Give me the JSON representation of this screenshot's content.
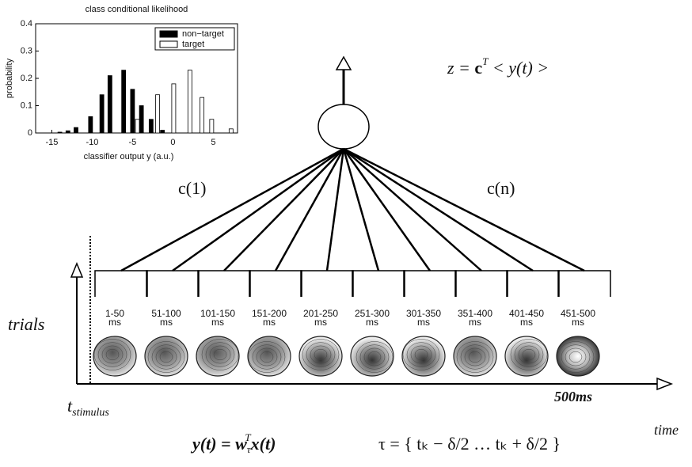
{
  "chart_data": {
    "type": "bar",
    "title": "class conditional likelihood",
    "x_label": "classifier output y (a.u.)",
    "y_label": "probability",
    "xlim": [
      -17,
      8
    ],
    "xticks": [
      -15,
      -10,
      -5,
      0,
      5
    ],
    "ylim": [
      0,
      0.4
    ],
    "yticks": [
      0,
      0.1,
      0.2,
      0.3,
      0.4
    ],
    "legend": "upper right",
    "series": [
      {
        "name": "non−target",
        "color": "#000000",
        "x": [
          -14,
          -13,
          -12,
          -10.2,
          -8.8,
          -7.8,
          -6.1,
          -5.0,
          -3.9,
          -2.7,
          -1.3
        ],
        "values": [
          0.003,
          0.008,
          0.02,
          0.06,
          0.14,
          0.21,
          0.23,
          0.16,
          0.1,
          0.05,
          0.01
        ]
      },
      {
        "name": "target",
        "color": "#ffffff",
        "x": [
          -4.4,
          -1.9,
          0.1,
          2.1,
          3.6,
          4.8,
          7.2
        ],
        "values": [
          0.05,
          0.14,
          0.18,
          0.23,
          0.13,
          0.05,
          0.015
        ]
      }
    ]
  },
  "diagram": {
    "output_equation": {
      "lhs": "z = ",
      "c": "c",
      "sup": "T",
      "rhs": " < y(t) >"
    },
    "weight_first": "c(1)",
    "weight_last": "c(n)",
    "windows": [
      {
        "range": "1-50",
        "unit": "ms"
      },
      {
        "range": "51-100",
        "unit": "ms"
      },
      {
        "range": "101-150",
        "unit": "ms"
      },
      {
        "range": "151-200",
        "unit": "ms"
      },
      {
        "range": "201-250",
        "unit": "ms"
      },
      {
        "range": "251-300",
        "unit": "ms"
      },
      {
        "range": "301-350",
        "unit": "ms"
      },
      {
        "range": "351-400",
        "unit": "ms"
      },
      {
        "range": "401-450",
        "unit": "ms"
      },
      {
        "range": "451-500",
        "unit": "ms"
      }
    ],
    "y_axis_label": "trials",
    "stimulus_label": {
      "t": "t",
      "sub": "stimulus"
    },
    "end_label": "500ms",
    "x_axis_label": "time",
    "projection_equation": {
      "lhs": "y(t) = w",
      "sub": "τ",
      "sup": "T",
      "rhs": "x(t)"
    },
    "window_equation": "τ = { tₖ − δ/2 … tₖ + δ/2 }"
  }
}
